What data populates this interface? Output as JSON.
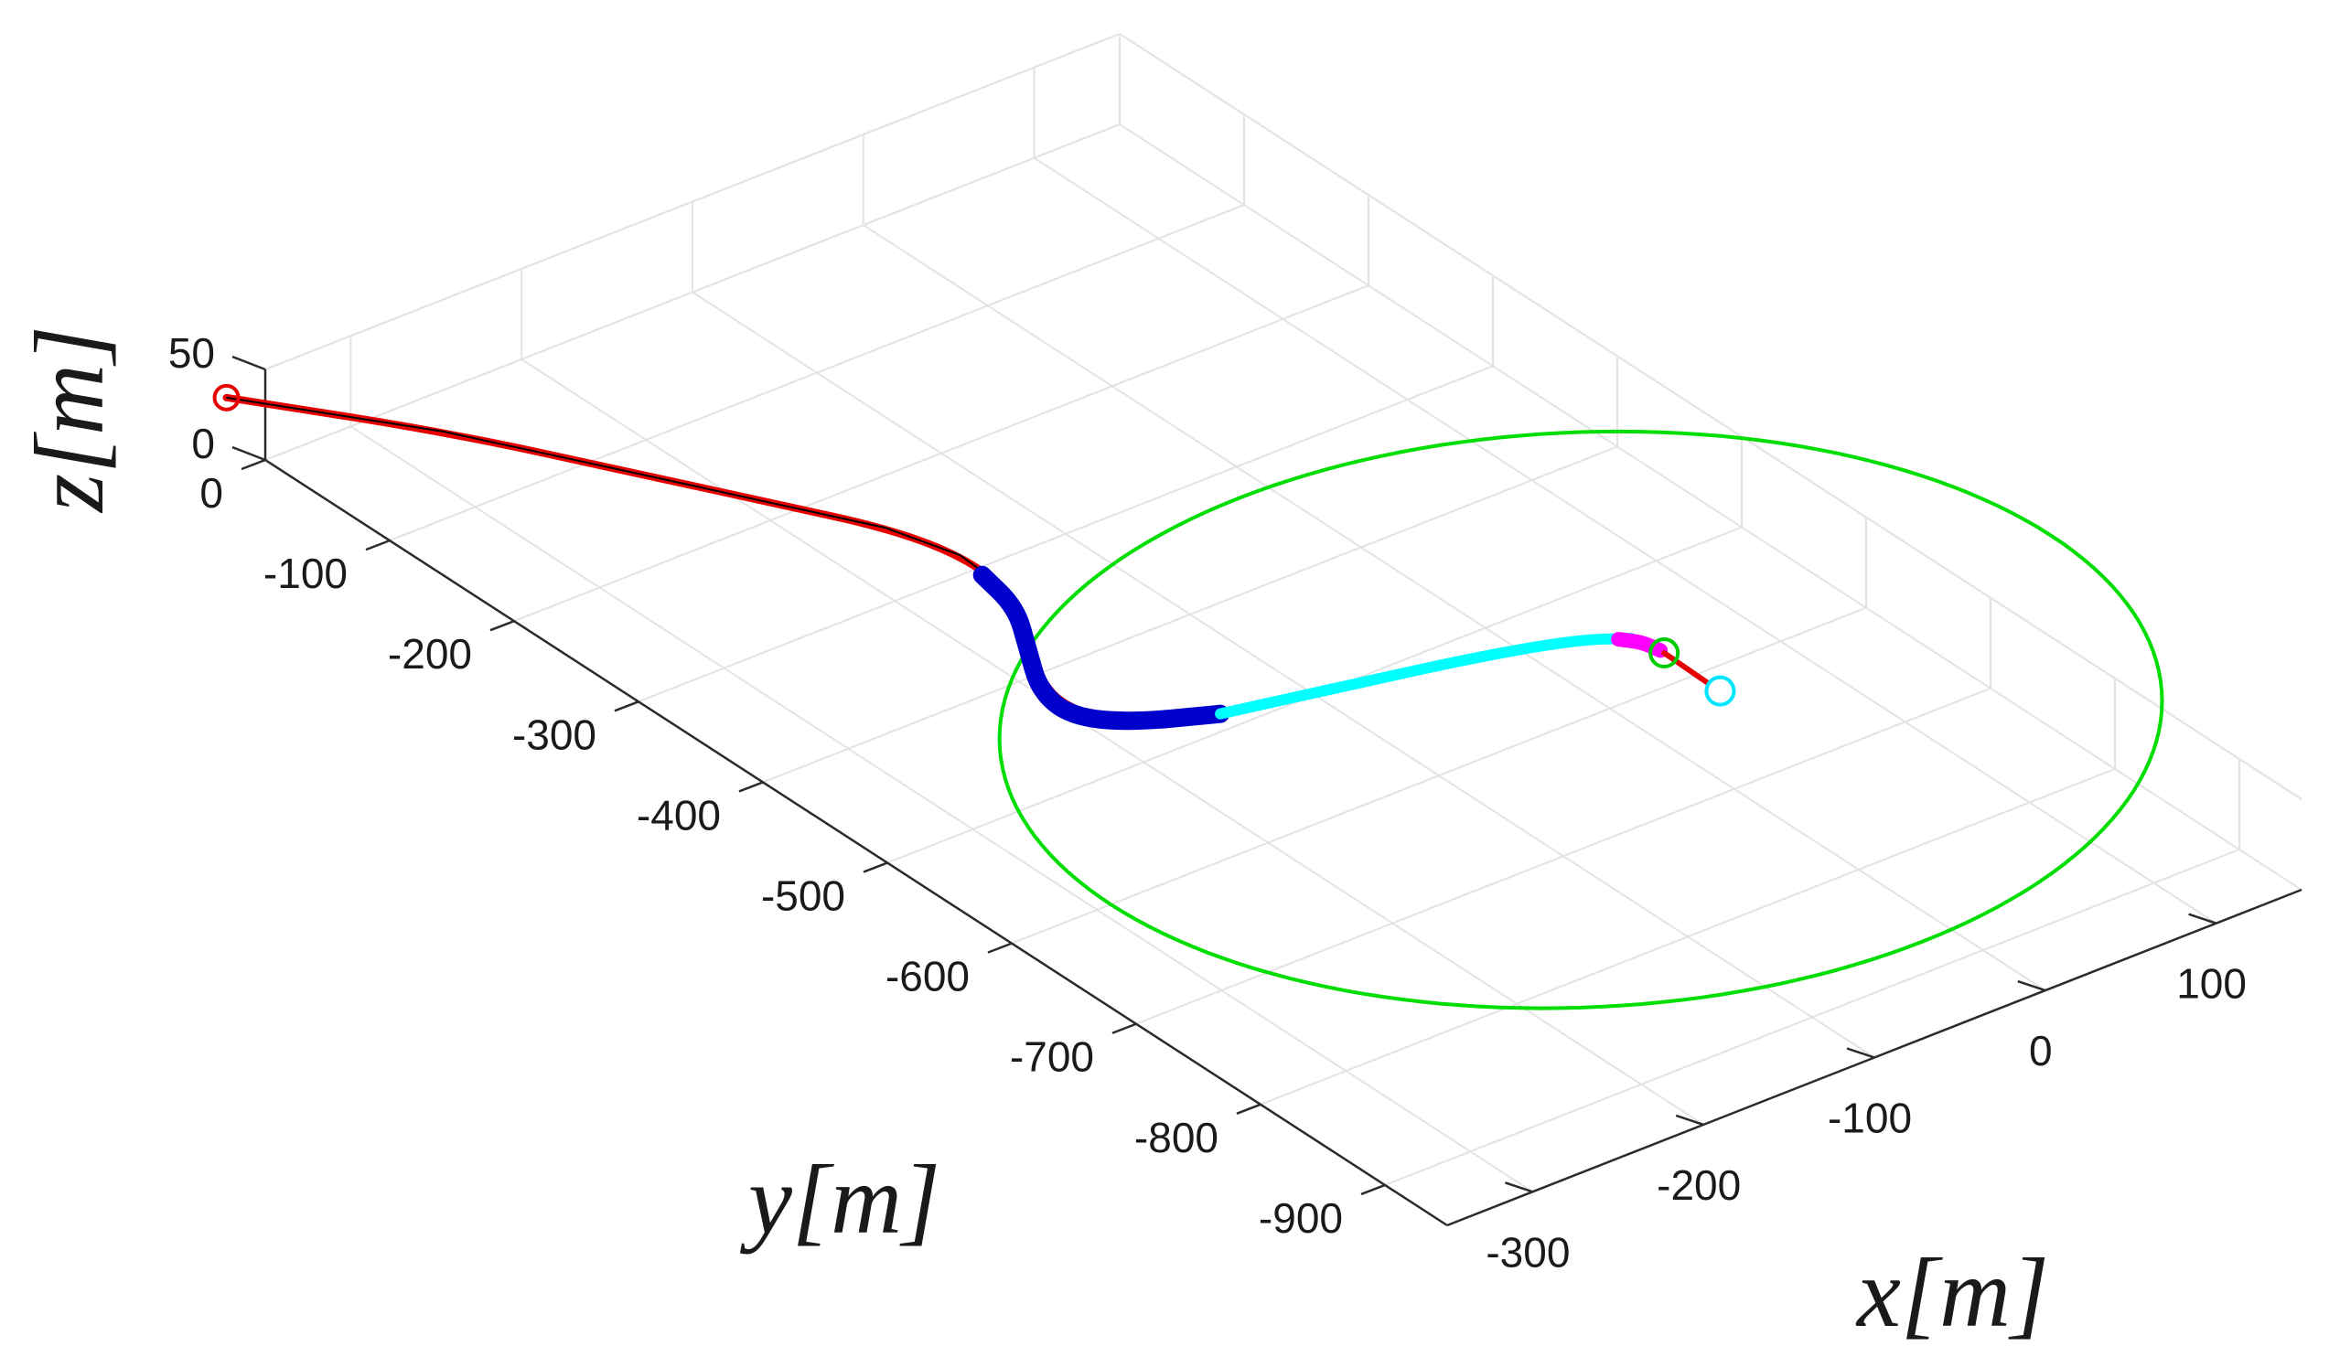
{
  "chart_data": {
    "type": "line3d",
    "xlabel": "x[m]",
    "ylabel": "y[m]",
    "zlabel": "z[m]",
    "xlim": [
      -350,
      150
    ],
    "ylim": [
      -950,
      0
    ],
    "zlim": [
      0,
      50
    ],
    "x_ticks": [
      -300,
      -200,
      -100,
      0,
      100
    ],
    "y_ticks": [
      0,
      -100,
      -200,
      -300,
      -400,
      -500,
      -600,
      -700,
      -800,
      -900
    ],
    "z_ticks": [
      0,
      50
    ],
    "grid": true,
    "series": [
      {
        "color": "#e60000",
        "marker_start": "circle",
        "points": [
          [
            -380,
            -10,
            50
          ],
          [
            -315,
            -95,
            45
          ],
          [
            -265,
            -175,
            40
          ],
          [
            -225,
            -240,
            36
          ],
          [
            -195,
            -285,
            32
          ],
          [
            -178,
            -322,
            27
          ],
          [
            -175,
            -357,
            22
          ],
          [
            -188,
            -392,
            18
          ],
          [
            -205,
            -422,
            14
          ],
          [
            -208,
            -450,
            10
          ],
          [
            -190,
            -473,
            7
          ],
          [
            -150,
            -493,
            5
          ]
        ]
      },
      {
        "color": "#0000cc",
        "points": [
          [
            -178,
            -340,
            24
          ],
          [
            -180,
            -370,
            20
          ],
          [
            -195,
            -400,
            16
          ],
          [
            -210,
            -430,
            12
          ],
          [
            -210,
            -455,
            9
          ],
          [
            -190,
            -475,
            7
          ],
          [
            -150,
            -493,
            5
          ]
        ]
      },
      {
        "color": "#00ffff",
        "points": [
          [
            -150,
            -493,
            5
          ],
          [
            -80,
            -510,
            4
          ],
          [
            -20,
            -525,
            3
          ],
          [
            25,
            -540,
            2
          ],
          [
            45,
            -555,
            2
          ]
        ]
      },
      {
        "color": "#ff00ff",
        "points": [
          [
            40,
            -552,
            2
          ],
          [
            48,
            -560,
            1
          ],
          [
            50,
            -572,
            1
          ]
        ]
      },
      {
        "color": "#e60000",
        "points": [
          [
            50,
            -575,
            1
          ],
          [
            50,
            -610,
            0
          ]
        ]
      }
    ],
    "circle": {
      "color": "#00dd00",
      "center": [
        -17,
        -600
      ],
      "radius": 275,
      "z": 0
    },
    "markers": [
      {
        "color": "#00cc00",
        "point": [
          50,
          -575,
          1
        ]
      },
      {
        "color": "#00e5ff",
        "point": [
          50,
          -620,
          0
        ]
      }
    ]
  }
}
